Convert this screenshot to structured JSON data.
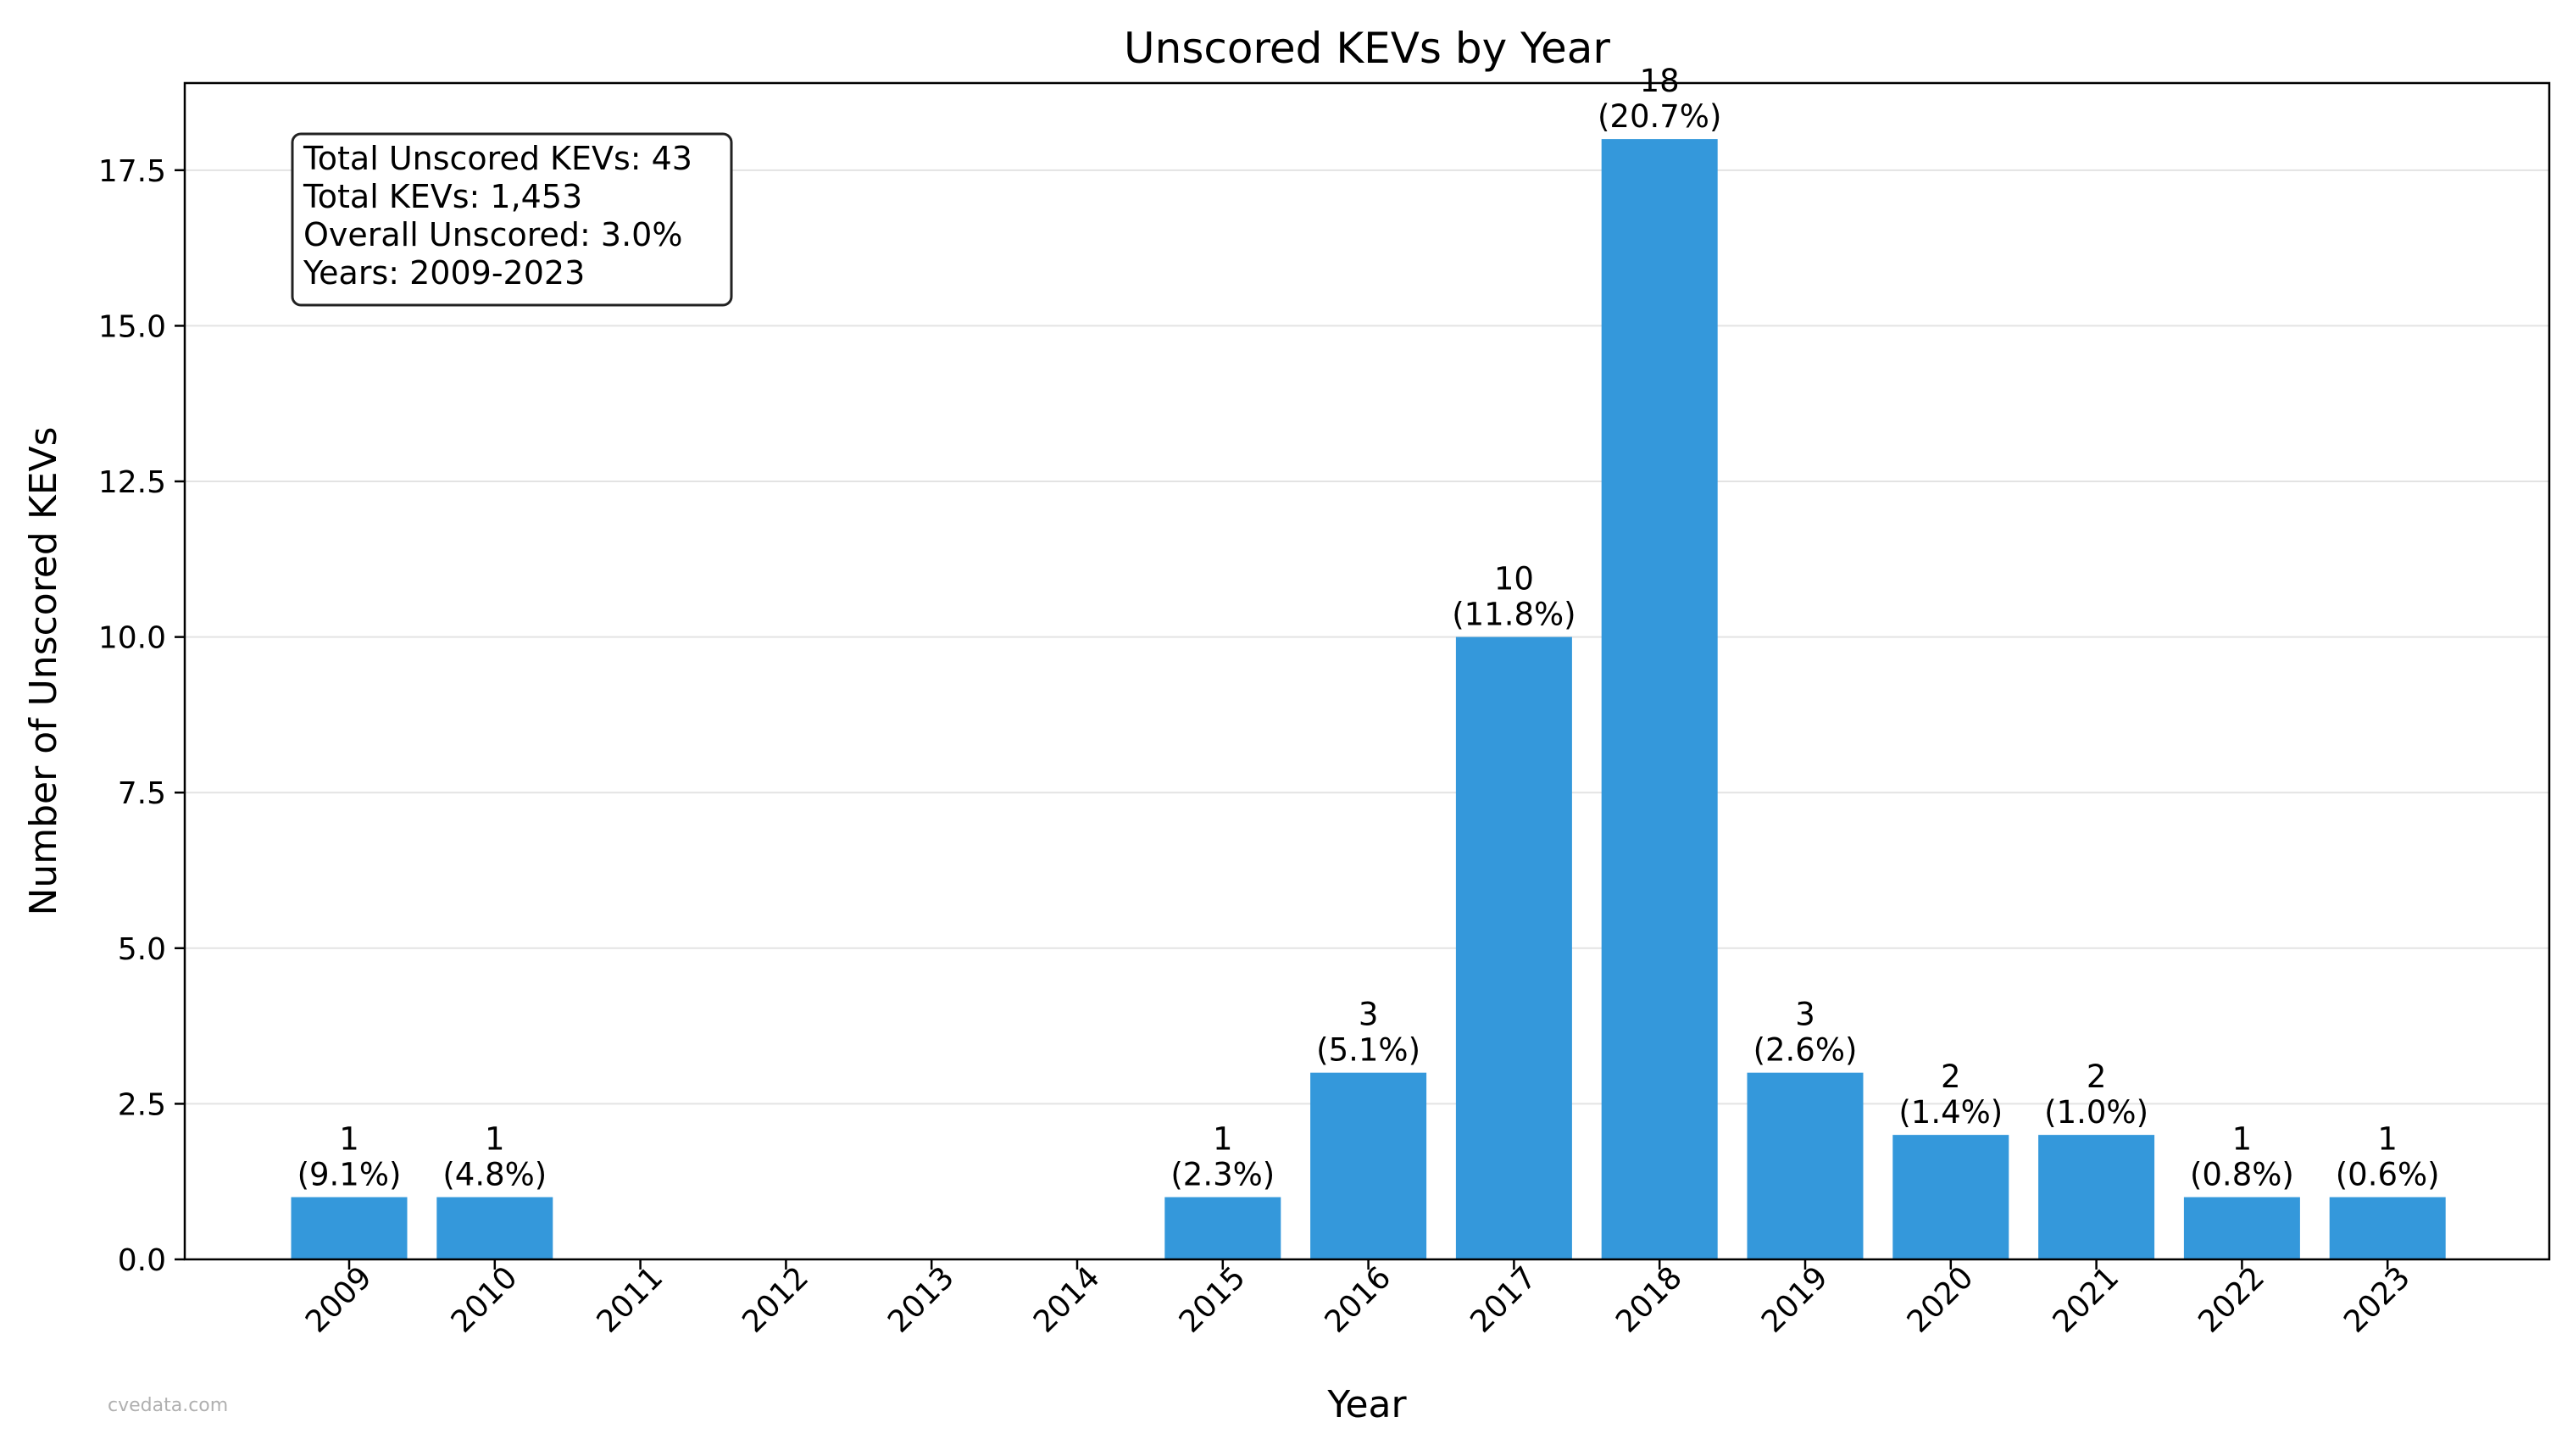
{
  "chart_data": {
    "type": "bar",
    "title": "Unscored KEVs by Year",
    "xlabel": "Year",
    "ylabel": "Number of Unscored KEVs",
    "categories": [
      "2009",
      "2010",
      "2011",
      "2012",
      "2013",
      "2014",
      "2015",
      "2016",
      "2017",
      "2018",
      "2019",
      "2020",
      "2021",
      "2022",
      "2023"
    ],
    "values": [
      1,
      1,
      0,
      0,
      0,
      0,
      1,
      3,
      10,
      18,
      3,
      2,
      2,
      1,
      1
    ],
    "bar_labels": [
      {
        "index": 0,
        "count": "1",
        "pct": "(9.1%)"
      },
      {
        "index": 1,
        "count": "1",
        "pct": "(4.8%)"
      },
      {
        "index": 6,
        "count": "1",
        "pct": "(2.3%)"
      },
      {
        "index": 7,
        "count": "3",
        "pct": "(5.1%)"
      },
      {
        "index": 8,
        "count": "10",
        "pct": "(11.8%)"
      },
      {
        "index": 9,
        "count": "18",
        "pct": "(20.7%)"
      },
      {
        "index": 10,
        "count": "3",
        "pct": "(2.6%)"
      },
      {
        "index": 11,
        "count": "2",
        "pct": "(1.4%)"
      },
      {
        "index": 12,
        "count": "2",
        "pct": "(1.0%)"
      },
      {
        "index": 13,
        "count": "1",
        "pct": "(0.8%)"
      },
      {
        "index": 14,
        "count": "1",
        "pct": "(0.6%)"
      }
    ],
    "ylim": [
      0,
      18.9
    ],
    "yticks": [
      0,
      2.5,
      5,
      7.5,
      10,
      12.5,
      15,
      17.5
    ],
    "ytick_labels": [
      "0.0",
      "2.5",
      "5.0",
      "7.5",
      "10.0",
      "12.5",
      "15.0",
      "17.5"
    ],
    "grid": "horizontal",
    "bar_color": "#3498db",
    "stats_box": [
      "Total Unscored KEVs: 43",
      "Total KEVs: 1,453",
      "Overall Unscored: 3.0%",
      "Years: 2009-2023"
    ]
  },
  "watermark": "cvedata.com"
}
